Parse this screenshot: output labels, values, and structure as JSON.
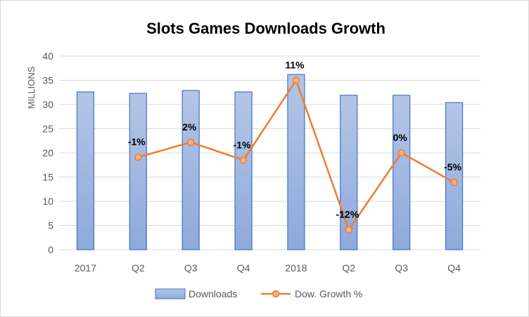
{
  "chart_data": {
    "type": "bar+line",
    "title": "Slots Games Downloads Growth",
    "ylabel": "MILLIONS",
    "xlabel": "",
    "ylim": [
      0,
      40
    ],
    "yticks": [
      0,
      5,
      10,
      15,
      20,
      25,
      30,
      35,
      40
    ],
    "categories": [
      "2017",
      "Q2",
      "Q3",
      "Q4",
      "2018",
      "Q2",
      "Q3",
      "Q4"
    ],
    "grid": true,
    "legend_position": "bottom",
    "series": [
      {
        "name": "Downloads",
        "type": "bar",
        "color": "#8EA9DB",
        "values": [
          32.6,
          32.3,
          32.9,
          32.6,
          36.2,
          31.9,
          31.9,
          30.4
        ]
      },
      {
        "name": "Dow. Growth %",
        "type": "line",
        "color": "#ED7D31",
        "values": [
          null,
          19.1,
          22.2,
          18.5,
          35.0,
          4.1,
          20.0,
          13.9
        ],
        "labels": [
          "",
          "-1%",
          "2%",
          "-1%",
          "11%",
          "-12%",
          "0%",
          "-5%"
        ]
      }
    ]
  }
}
